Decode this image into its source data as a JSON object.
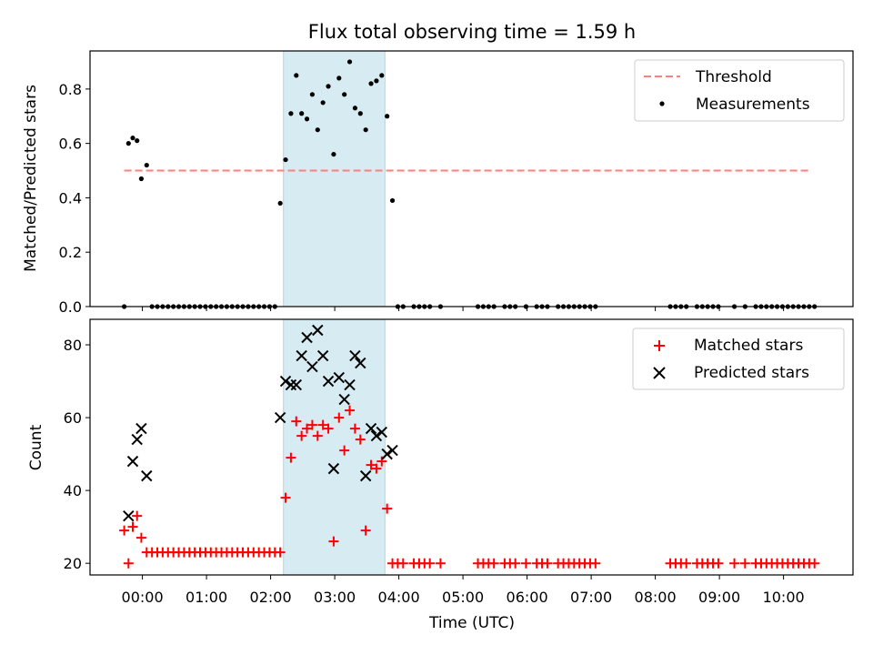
{
  "chart_data": {
    "type": "scatter",
    "title": "Flux total observing time = 1.59 h",
    "xlabel": "Time (UTC)",
    "xlim": [
      "23:11",
      "11:05"
    ],
    "xticks": [
      "00:00",
      "01:00",
      "02:00",
      "03:00",
      "04:00",
      "05:00",
      "06:00",
      "07:00",
      "08:00",
      "09:00",
      "10:00"
    ],
    "highlight_span": [
      "02:12",
      "03:47"
    ],
    "highlight_color": "#add8e6",
    "grid": false,
    "panels": [
      {
        "ylabel": "Matched/Predicted stars",
        "ylim": [
          0,
          0.94
        ],
        "yticks": [
          "0.0",
          "0.2",
          "0.4",
          "0.6",
          "0.8"
        ],
        "legend": "top-right",
        "series": [
          {
            "name": "Threshold",
            "kind": "line",
            "style": "dashed",
            "color": "#ff7f7f",
            "x": [
              "23:43",
              "10:23"
            ],
            "y": [
              0.5,
              0.5
            ]
          },
          {
            "name": "Measurements",
            "kind": "scatter",
            "marker": "dot",
            "color": "#000000",
            "x": [
              "23:43",
              "23:47",
              "23:51",
              "23:55",
              "23:59",
              "00:04",
              "00:09",
              "00:14",
              "00:19",
              "00:24",
              "00:29",
              "00:34",
              "00:39",
              "00:44",
              "00:49",
              "00:54",
              "00:59",
              "01:04",
              "01:09",
              "01:14",
              "01:19",
              "01:24",
              "01:29",
              "01:34",
              "01:39",
              "01:44",
              "01:49",
              "01:54",
              "01:59",
              "02:04",
              "02:09",
              "02:14",
              "02:19",
              "02:24",
              "02:29",
              "02:34",
              "02:39",
              "02:44",
              "02:49",
              "02:54",
              "02:59",
              "03:04",
              "03:09",
              "03:14",
              "03:19",
              "03:24",
              "03:29",
              "03:34",
              "03:39",
              "03:44",
              "03:49",
              "03:54",
              "03:59",
              "04:04",
              "04:14",
              "04:19",
              "04:24",
              "04:29",
              "04:39",
              "05:14",
              "05:19",
              "05:24",
              "05:29",
              "05:39",
              "05:44",
              "05:49",
              "05:59",
              "06:09",
              "06:14",
              "06:19",
              "06:29",
              "06:34",
              "06:39",
              "06:44",
              "06:49",
              "06:54",
              "06:59",
              "07:04",
              "08:14",
              "08:19",
              "08:24",
              "08:29",
              "08:39",
              "08:44",
              "08:49",
              "08:54",
              "08:59",
              "09:14",
              "09:24",
              "09:34",
              "09:39",
              "09:44",
              "09:49",
              "09:54",
              "09:59",
              "10:04",
              "10:09",
              "10:14",
              "10:19",
              "10:24",
              "10:29"
            ],
            "y": [
              0.0,
              0.6,
              0.62,
              0.61,
              0.47,
              0.52,
              0.0,
              0.0,
              0.0,
              0.0,
              0.0,
              0.0,
              0.0,
              0.0,
              0.0,
              0.0,
              0.0,
              0.0,
              0.0,
              0.0,
              0.0,
              0.0,
              0.0,
              0.0,
              0.0,
              0.0,
              0.0,
              0.0,
              0.0,
              0.0,
              0.38,
              0.54,
              0.71,
              0.85,
              0.71,
              0.69,
              0.78,
              0.65,
              0.75,
              0.81,
              0.56,
              0.84,
              0.78,
              0.9,
              0.73,
              0.71,
              0.65,
              0.82,
              0.83,
              0.85,
              0.7,
              0.39,
              0.0,
              0.0,
              0.0,
              0.0,
              0.0,
              0.0,
              0.0,
              0.0,
              0.0,
              0.0,
              0.0,
              0.0,
              0.0,
              0.0,
              0.0,
              0.0,
              0.0,
              0.0,
              0.0,
              0.0,
              0.0,
              0.0,
              0.0,
              0.0,
              0.0,
              0.0,
              0.0,
              0.0,
              0.0,
              0.0,
              0.0,
              0.0,
              0.0,
              0.0,
              0.0,
              0.0,
              0.0,
              0.0,
              0.0,
              0.0,
              0.0,
              0.0,
              0.0,
              0.0,
              0.0,
              0.0,
              0.0,
              0.0,
              0.0
            ]
          }
        ]
      },
      {
        "ylabel": "Count",
        "ylim": [
          16.8,
          87
        ],
        "yticks": [
          "20",
          "40",
          "60",
          "80"
        ],
        "legend": "top-right",
        "series": [
          {
            "name": "Matched stars",
            "kind": "scatter",
            "marker": "plus",
            "color": "#ff0000",
            "x": [
              "23:43",
              "23:47",
              "23:51",
              "23:55",
              "23:59",
              "00:04",
              "00:09",
              "00:14",
              "00:19",
              "00:24",
              "00:29",
              "00:34",
              "00:39",
              "00:44",
              "00:49",
              "00:54",
              "00:59",
              "01:04",
              "01:09",
              "01:14",
              "01:19",
              "01:24",
              "01:29",
              "01:34",
              "01:39",
              "01:44",
              "01:49",
              "01:54",
              "01:59",
              "02:04",
              "02:09",
              "02:14",
              "02:19",
              "02:24",
              "02:29",
              "02:34",
              "02:39",
              "02:44",
              "02:49",
              "02:54",
              "02:59",
              "03:04",
              "03:09",
              "03:14",
              "03:19",
              "03:24",
              "03:29",
              "03:34",
              "03:39",
              "03:44",
              "03:49",
              "03:54",
              "03:59",
              "04:04",
              "04:14",
              "04:19",
              "04:24",
              "04:29",
              "04:39",
              "05:14",
              "05:19",
              "05:24",
              "05:29",
              "05:39",
              "05:44",
              "05:49",
              "05:59",
              "06:09",
              "06:14",
              "06:19",
              "06:29",
              "06:34",
              "06:39",
              "06:44",
              "06:49",
              "06:54",
              "06:59",
              "07:04",
              "08:14",
              "08:19",
              "08:24",
              "08:29",
              "08:39",
              "08:44",
              "08:49",
              "08:54",
              "08:59",
              "09:14",
              "09:24",
              "09:34",
              "09:39",
              "09:44",
              "09:49",
              "09:54",
              "09:59",
              "10:04",
              "10:09",
              "10:14",
              "10:19",
              "10:24",
              "10:29"
            ],
            "y": [
              29,
              20,
              30,
              33,
              27,
              23,
              23,
              23,
              23,
              23,
              23,
              23,
              23,
              23,
              23,
              23,
              23,
              23,
              23,
              23,
              23,
              23,
              23,
              23,
              23,
              23,
              23,
              23,
              23,
              23,
              23,
              38,
              49,
              59,
              55,
              57,
              58,
              55,
              58,
              57,
              26,
              60,
              51,
              62,
              57,
              54,
              29,
              47,
              46,
              48,
              35,
              20,
              20,
              20,
              20,
              20,
              20,
              20,
              20,
              20,
              20,
              20,
              20,
              20,
              20,
              20,
              20,
              20,
              20,
              20,
              20,
              20,
              20,
              20,
              20,
              20,
              20,
              20,
              20,
              20,
              20,
              20,
              20,
              20,
              20,
              20,
              20,
              20,
              20,
              20,
              20,
              20,
              20,
              20,
              20,
              20,
              20,
              20,
              20,
              20,
              20
            ]
          },
          {
            "name": "Predicted stars",
            "kind": "scatter",
            "marker": "x",
            "color": "#000000",
            "x": [
              "23:47",
              "23:51",
              "23:55",
              "23:59",
              "00:04",
              "02:09",
              "02:14",
              "02:19",
              "02:24",
              "02:29",
              "02:34",
              "02:39",
              "02:44",
              "02:49",
              "02:54",
              "02:59",
              "03:04",
              "03:09",
              "03:14",
              "03:19",
              "03:24",
              "03:29",
              "03:34",
              "03:39",
              "03:44",
              "03:49",
              "03:54"
            ],
            "y": [
              33,
              48,
              54,
              57,
              44,
              60,
              70,
              69,
              69,
              77,
              82,
              74,
              84,
              77,
              70,
              46,
              71,
              65,
              69,
              77,
              75,
              44,
              57,
              55,
              56,
              50,
              51
            ]
          }
        ]
      }
    ]
  }
}
